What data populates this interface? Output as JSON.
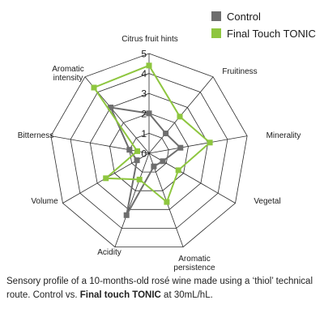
{
  "chart_data": {
    "type": "radar",
    "axes": [
      "Citrus fruit hints",
      "Fruitiness",
      "Minerality",
      "Vegetal",
      "Aromatic persistence",
      "Acidity",
      "Volume",
      "Bitterness",
      "Aromatic intensity"
    ],
    "axis_label_lines": [
      [
        "Citrus fruit hints"
      ],
      [
        "Fruitiness"
      ],
      [
        "Minerality"
      ],
      [
        "Vegetal"
      ],
      [
        "Aromatic",
        "persistence"
      ],
      [
        "Acidity"
      ],
      [
        "Volume"
      ],
      [
        "Bitterness"
      ],
      [
        "Aromatic",
        "intensity"
      ]
    ],
    "range": [
      0,
      5
    ],
    "ticks": [
      "0",
      "1",
      "2",
      "3",
      "4",
      "5"
    ],
    "series": [
      {
        "name": "Control",
        "color": "#6e6e6e",
        "values": [
          2,
          1.3,
          1.6,
          0.8,
          0.7,
          3.3,
          0.7,
          1.0,
          3.0
        ]
      },
      {
        "name": "Final Touch TONIC",
        "color": "#8ec63f",
        "values": [
          4.4,
          2.4,
          3.1,
          1.7,
          2.6,
          1.4,
          2.5,
          0.6,
          4.3
        ]
      }
    ],
    "grid": true,
    "legend": "top-right"
  },
  "caption": {
    "part1": "Sensory profile of a 10-months-old rosé wine made using a ‘thiol’ technical route. Control vs. ",
    "bold": "Final touch TONIC",
    "part2": " at 30mL/hL."
  }
}
